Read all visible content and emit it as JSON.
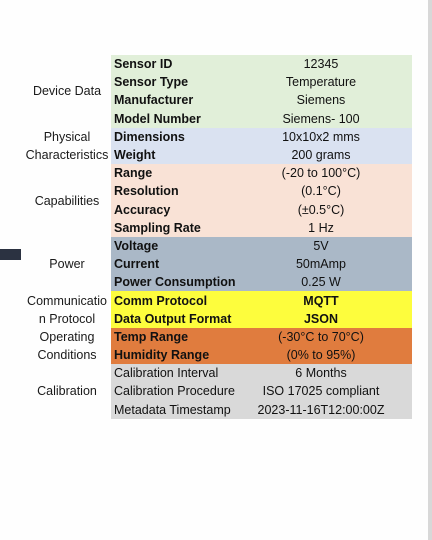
{
  "sections": [
    {
      "label": "Device Data",
      "rows": [
        {
          "key": "Sensor ID",
          "value": "12345"
        },
        {
          "key": "Sensor Type",
          "value": "Temperature"
        },
        {
          "key": "Manufacturer",
          "value": "Siemens"
        },
        {
          "key": "Model Number",
          "value": "Siemens- 100"
        }
      ]
    },
    {
      "label_lines": [
        "Physical",
        "Characteristics"
      ],
      "rows": [
        {
          "key": "Dimensions",
          "value": "10x10x2 mms"
        },
        {
          "key": "Weight",
          "value": "200 grams"
        }
      ]
    },
    {
      "label": "Capabilities",
      "rows": [
        {
          "key": "Range",
          "value": "(-20 to 100°C)"
        },
        {
          "key": "Resolution",
          "value": "(0.1°C)"
        },
        {
          "key": "Accuracy",
          "value": "(±0.5°C)"
        },
        {
          "key": "Sampling Rate",
          "value": "1 Hz"
        }
      ]
    },
    {
      "label": "Power",
      "rows": [
        {
          "key": "Voltage",
          "value": "5V"
        },
        {
          "key": "Current",
          "value": "50mAmp"
        },
        {
          "key": "Power Consumption",
          "value": "0.25 W"
        }
      ]
    },
    {
      "label_lines": [
        "Communicatio",
        "n Protocol"
      ],
      "rows": [
        {
          "key": "Comm Protocol",
          "value": "MQTT"
        },
        {
          "key": "Data Output Format",
          "value": "JSON"
        }
      ]
    },
    {
      "label_lines": [
        "Operating",
        "Conditions"
      ],
      "rows": [
        {
          "key": "Temp Range",
          "value": "(-30°C to 70°C)"
        },
        {
          "key": "Humidity Range",
          "value": "(0% to 95%)"
        }
      ]
    },
    {
      "label": "Calibration",
      "rows": [
        {
          "key": "Calibration Interval",
          "value": "6 Months"
        },
        {
          "key": "Calibration Procedure",
          "value": "ISO 17025 compliant"
        },
        {
          "key": "Metadata Timestamp",
          "value": "2023-11-16T12:00:00Z"
        }
      ]
    }
  ],
  "colors": {
    "device": "#e1efd9",
    "physical": "#dae2f1",
    "capabilities": "#f9e2d6",
    "power": "#aab8c7",
    "communication": "#fdfd3d",
    "operating": "#e07c3e",
    "calibration": "#d9d9d9"
  }
}
